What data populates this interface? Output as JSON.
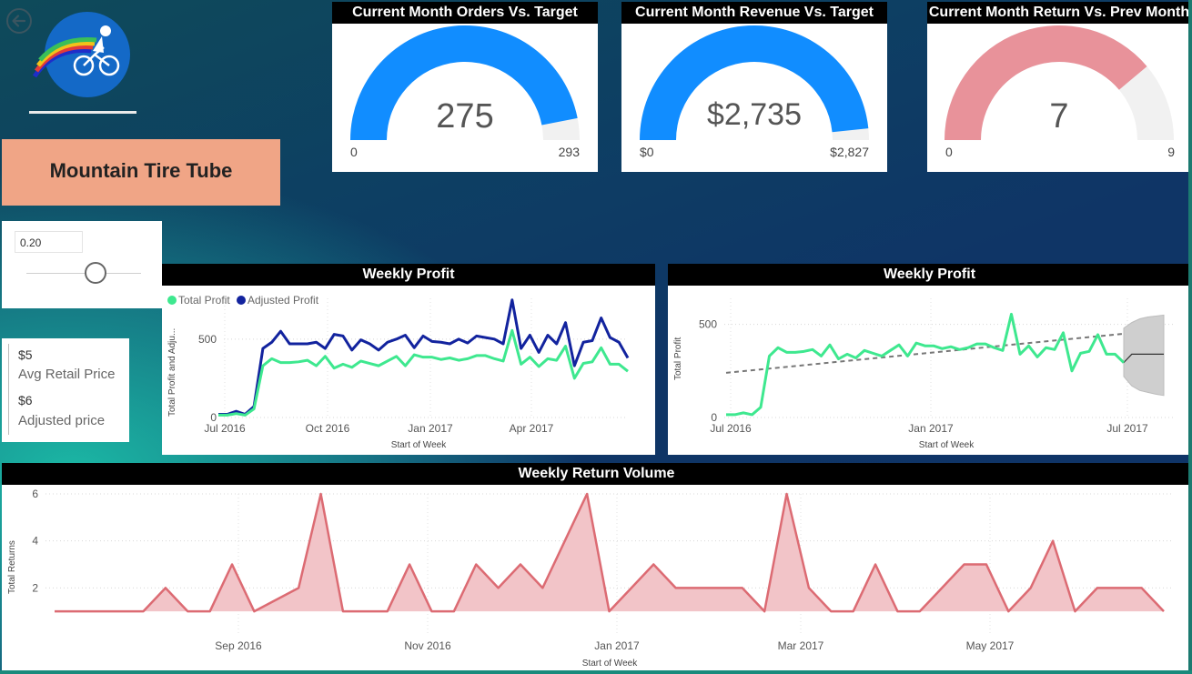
{
  "product_title": "Mountain Tire Tube",
  "slider": {
    "value": "0.20",
    "level": 0.6
  },
  "cards": {
    "avg_retail_value": "$5",
    "avg_retail_label": "Avg Retail Price",
    "adjusted_value": "$6",
    "adjusted_label": "Adjusted price"
  },
  "gauges": [
    {
      "title": "Current Month Orders Vs. Target",
      "value": "275",
      "min": "0",
      "max": "293",
      "fraction": 0.9386,
      "color": "#118dff"
    },
    {
      "title": "Current Month Revenue Vs. Target",
      "value": "$2,735",
      "min": "$0",
      "max": "$2,827",
      "fraction": 0.9675,
      "color": "#118dff"
    },
    {
      "title": "Current Month Return Vs. Prev Month",
      "value": "7",
      "min": "0",
      "max": "9",
      "fraction": 0.7778,
      "color": "#e8929a"
    }
  ],
  "colors": {
    "green": "#3ee88f",
    "navy": "#12239e",
    "return_line": "#dc6b73",
    "return_fill": "#f2c4c8",
    "title_box": "#f0a586"
  },
  "chart_data": [
    {
      "type": "line",
      "title": "Weekly Profit",
      "xlabel": "Start of Week",
      "ylabel": "Total Profit and Adju...",
      "x_ticks": [
        "Jul 2016",
        "Oct 2016",
        "Jan 2017",
        "Apr 2017"
      ],
      "y_ticks": [
        "0",
        "500"
      ],
      "ylim": [
        0,
        760
      ],
      "legend": "top-left",
      "series": [
        {
          "name": "Total Profit",
          "color": "#3ee88f",
          "values": [
            15,
            15,
            25,
            15,
            55,
            330,
            375,
            350,
            350,
            355,
            365,
            330,
            390,
            315,
            340,
            320,
            360,
            345,
            330,
            360,
            390,
            330,
            400,
            385,
            385,
            370,
            380,
            365,
            375,
            395,
            395,
            375,
            360,
            555,
            340,
            385,
            325,
            375,
            365,
            455,
            250,
            345,
            355,
            445,
            340,
            340,
            295
          ]
        },
        {
          "name": "Adjusted Profit",
          "color": "#12239e",
          "values": [
            20,
            20,
            40,
            20,
            70,
            440,
            480,
            550,
            470,
            470,
            470,
            480,
            440,
            530,
            520,
            430,
            495,
            470,
            430,
            480,
            500,
            525,
            445,
            520,
            485,
            480,
            470,
            500,
            475,
            520,
            510,
            500,
            470,
            750,
            440,
            525,
            415,
            525,
            470,
            605,
            330,
            480,
            490,
            635,
            510,
            480,
            380
          ]
        }
      ]
    },
    {
      "type": "line",
      "title": "Weekly Profit",
      "xlabel": "Start of Week",
      "ylabel": "Total Profit",
      "x_ticks": [
        "Jul 2016",
        "Jan 2017",
        "Jul 2017"
      ],
      "y_ticks": [
        "0",
        "500"
      ],
      "ylim": [
        0,
        640
      ],
      "series": [
        {
          "name": "Total Profit",
          "color": "#3ee88f",
          "values": [
            15,
            15,
            25,
            15,
            55,
            330,
            375,
            350,
            350,
            355,
            365,
            330,
            390,
            315,
            340,
            320,
            360,
            345,
            330,
            360,
            390,
            330,
            400,
            385,
            385,
            370,
            380,
            365,
            375,
            395,
            395,
            375,
            360,
            555,
            340,
            385,
            325,
            375,
            365,
            455,
            250,
            345,
            355,
            445,
            340,
            340,
            295
          ]
        }
      ],
      "trend": [
        240,
        450
      ],
      "forecast": {
        "values": [
          295,
          340,
          340,
          340,
          340,
          340
        ],
        "upper": [
          480,
          510,
          530,
          540,
          545,
          550
        ],
        "lower": [
          220,
          170,
          145,
          135,
          125,
          118
        ]
      }
    },
    {
      "type": "area",
      "title": "Weekly Return Volume",
      "xlabel": "Start of Week",
      "ylabel": "Total Returns",
      "x_ticks": [
        "Sep 2016",
        "Nov 2016",
        "Jan 2017",
        "Mar 2017",
        "May 2017"
      ],
      "y_ticks": [
        "2",
        "4",
        "6"
      ],
      "ylim": [
        0,
        6
      ],
      "values": [
        1,
        1,
        1,
        1,
        1,
        2,
        1,
        1,
        3,
        1,
        1.5,
        2,
        6,
        1,
        1,
        1,
        3,
        1,
        1,
        3,
        2,
        3,
        2,
        4,
        6,
        1,
        2,
        3,
        2,
        2,
        2,
        2,
        1,
        6,
        2,
        1,
        1,
        3,
        1,
        1,
        2,
        3,
        3,
        1,
        2,
        4,
        1,
        2,
        2,
        2,
        1
      ]
    }
  ]
}
